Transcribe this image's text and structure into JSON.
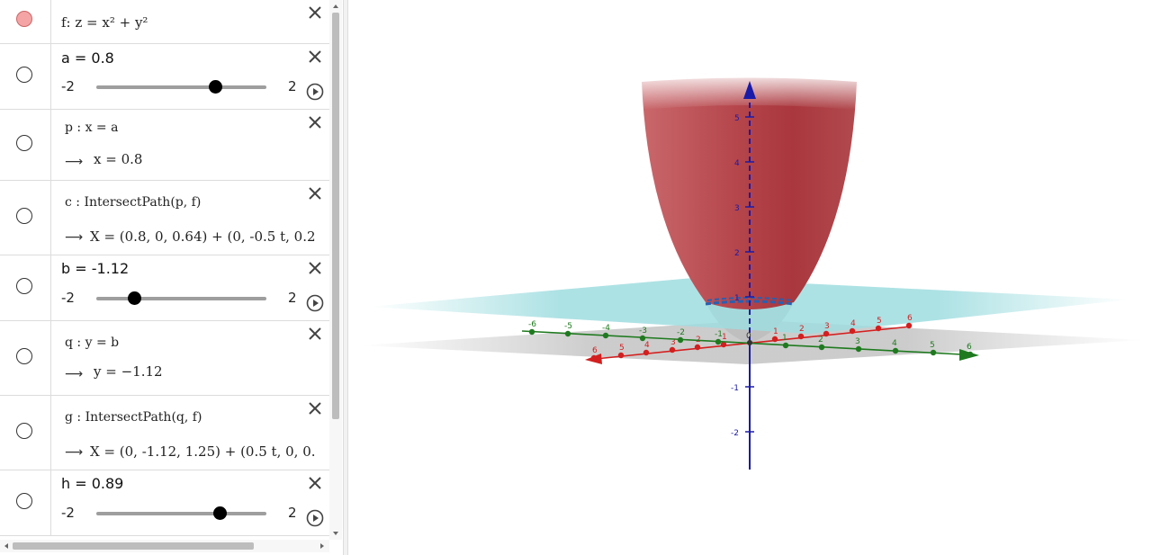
{
  "algebra": {
    "rows": [
      {
        "id": "f",
        "text": "f: z = x² + y²",
        "marble_on": true
      },
      {
        "id": "a",
        "label": "a = 0.8",
        "min": "-2",
        "max": "2",
        "value": 0.8,
        "range": [
          -2,
          2
        ]
      },
      {
        "id": "p",
        "def": "p : x = a",
        "result": "x = 0.8"
      },
      {
        "id": "c",
        "def": "c : IntersectPath(p, f)",
        "result": "X = (0.8, 0, 0.64) + (0, -0.5 t, 0.2"
      },
      {
        "id": "b",
        "label": "b = -1.12",
        "min": "-2",
        "max": "2",
        "value": -1.12,
        "range": [
          -2,
          2
        ]
      },
      {
        "id": "q",
        "def": "q : y = b",
        "result": "y = −1.12"
      },
      {
        "id": "g",
        "def": "g : IntersectPath(q, f)",
        "result": "X = (0, -1.12, 1.25) + (0.5 t, 0, 0."
      },
      {
        "id": "h",
        "label": "h = 0.89",
        "min": "-2",
        "max": "2",
        "value": 0.89,
        "range": [
          -2,
          2
        ]
      }
    ],
    "arrow_glyph": "⟶"
  },
  "view3d": {
    "z_ticks": [
      "5",
      "4",
      "3",
      "2",
      "1",
      "-1",
      "-2"
    ],
    "x_ticks_red": [
      "6",
      "5",
      "4",
      "3",
      "2",
      "1",
      "1",
      "2",
      "3",
      "4",
      "5",
      "6"
    ],
    "y_ticks_green": [
      "-6",
      "-5",
      "-4",
      "-3",
      "-2",
      "-1",
      "1",
      "2",
      "3",
      "4",
      "5",
      "6"
    ],
    "origin_label": "0",
    "colors": {
      "surface": "#b5474c",
      "plane_cyan": "#9fdde0",
      "plane_gray": "#bdbdbd",
      "axis_z": "#1a1aa8",
      "axis_x": "#d31f1f",
      "axis_y": "#1f7a1f"
    }
  }
}
